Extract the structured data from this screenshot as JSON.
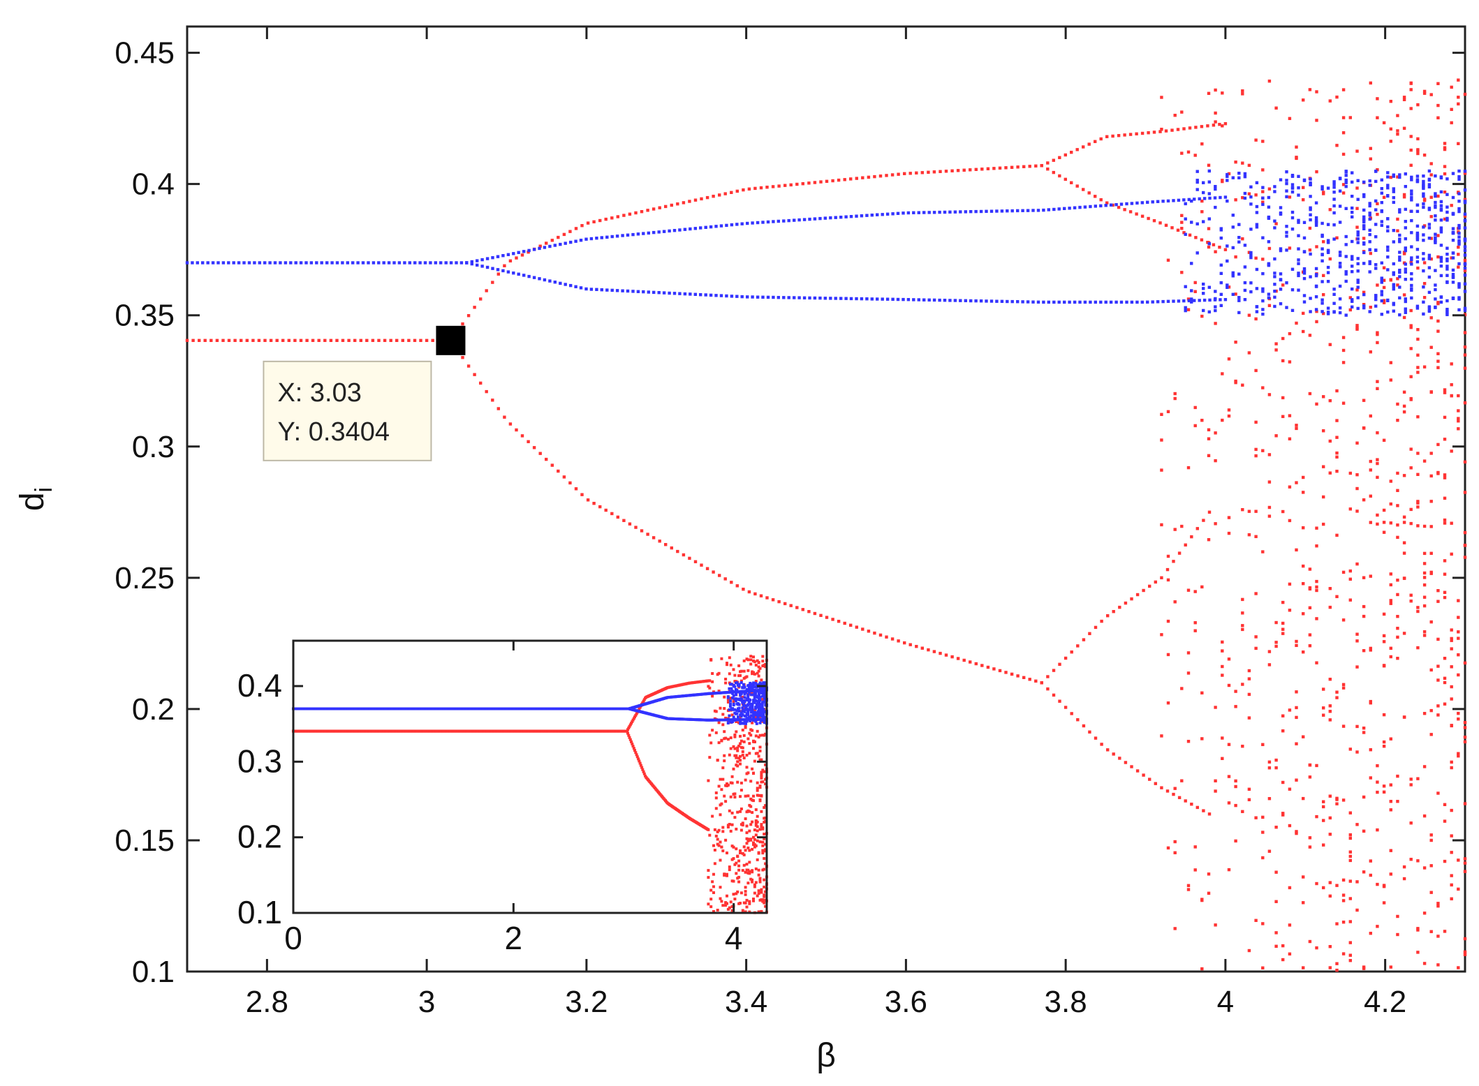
{
  "chart_data": [
    {
      "type": "scatter",
      "title": "",
      "xlabel": "β",
      "ylabel": "d",
      "ylabel_subscript": "i",
      "xlim": [
        2.7,
        4.3
      ],
      "ylim": [
        0.1,
        0.46
      ],
      "x_ticks": [
        "2.8",
        "3",
        "3.2",
        "3.4",
        "3.6",
        "3.8",
        "4",
        "4.2"
      ],
      "y_ticks": [
        "0.1",
        "0.15",
        "0.2",
        "0.25",
        "0.3",
        "0.35",
        "0.4",
        "0.45"
      ],
      "grid": false,
      "series_colors": [
        "#ff3333",
        "#3333ff"
      ],
      "series": [
        {
          "color": "#ff3333",
          "branches": [
            {
              "x": [
                2.7,
                3.03
              ],
              "y": [
                0.3404,
                0.3404
              ]
            },
            {
              "x": [
                3.03,
                3.1,
                3.2,
                3.4,
                3.6,
                3.77
              ],
              "y": [
                0.3404,
                0.37,
                0.385,
                0.398,
                0.404,
                0.407
              ]
            },
            {
              "x": [
                3.03,
                3.1,
                3.2,
                3.4,
                3.6,
                3.77
              ],
              "y": [
                0.3404,
                0.31,
                0.28,
                0.245,
                0.225,
                0.21
              ]
            },
            {
              "x": [
                3.77,
                3.85,
                3.92,
                4.0
              ],
              "y": [
                0.407,
                0.418,
                0.42,
                0.423
              ]
            },
            {
              "x": [
                3.77,
                3.85,
                3.92,
                4.0
              ],
              "y": [
                0.407,
                0.393,
                0.385,
                0.375
              ]
            },
            {
              "x": [
                3.77,
                3.85,
                3.92,
                3.98
              ],
              "y": [
                0.21,
                0.235,
                0.25,
                0.275
              ]
            },
            {
              "x": [
                3.77,
                3.85,
                3.92,
                3.98
              ],
              "y": [
                0.21,
                0.185,
                0.17,
                0.16
              ]
            }
          ],
          "chaos_region": {
            "x_start": 3.92,
            "x_end": 4.3,
            "y_min": 0.1,
            "y_max": 0.44
          }
        },
        {
          "color": "#3333ff",
          "branches": [
            {
              "x": [
                2.7,
                3.05
              ],
              "y": [
                0.37,
                0.37
              ]
            },
            {
              "x": [
                3.05,
                3.2,
                3.4,
                3.6,
                3.77,
                3.9,
                4.0
              ],
              "y": [
                0.37,
                0.379,
                0.385,
                0.389,
                0.39,
                0.393,
                0.395
              ]
            },
            {
              "x": [
                3.05,
                3.2,
                3.4,
                3.6,
                3.77,
                3.9,
                4.0
              ],
              "y": [
                0.37,
                0.36,
                0.357,
                0.356,
                0.355,
                0.355,
                0.356
              ]
            }
          ],
          "chaos_region": {
            "x_start": 3.95,
            "x_end": 4.3,
            "y_min": 0.35,
            "y_max": 0.405
          }
        }
      ],
      "annotation": {
        "x": 3.03,
        "y": 0.3404,
        "label_x": "X: 3.03",
        "label_y": "Y: 0.3404"
      }
    },
    {
      "type": "scatter",
      "title": "",
      "xlabel": "",
      "ylabel": "",
      "xlim": [
        0,
        4.3
      ],
      "ylim": [
        0.1,
        0.46
      ],
      "x_ticks": [
        "0",
        "2",
        "4"
      ],
      "y_ticks": [
        "0.1",
        "0.2",
        "0.3",
        "0.4"
      ],
      "grid": false,
      "series": [
        {
          "color": "#ff3333",
          "branches": [
            {
              "x": [
                0,
                3.03
              ],
              "y": [
                0.3404,
                0.3404
              ]
            },
            {
              "x": [
                3.03,
                3.2,
                3.4,
                3.6,
                3.77
              ],
              "y": [
                0.3404,
                0.385,
                0.398,
                0.404,
                0.407
              ]
            },
            {
              "x": [
                3.03,
                3.2,
                3.4,
                3.6,
                3.77
              ],
              "y": [
                0.3404,
                0.28,
                0.245,
                0.225,
                0.21
              ]
            }
          ],
          "chaos_region": {
            "x_start": 3.77,
            "x_end": 4.3,
            "y_min": 0.1,
            "y_max": 0.44
          }
        },
        {
          "color": "#3333ff",
          "branches": [
            {
              "x": [
                0,
                3.05
              ],
              "y": [
                0.37,
                0.37
              ]
            },
            {
              "x": [
                3.05,
                3.4,
                3.77,
                4.3
              ],
              "y": [
                0.37,
                0.385,
                0.39,
                0.395
              ]
            },
            {
              "x": [
                3.05,
                3.4,
                3.77,
                4.3
              ],
              "y": [
                0.37,
                0.357,
                0.355,
                0.356
              ]
            }
          ],
          "chaos_region": {
            "x_start": 3.95,
            "x_end": 4.3,
            "y_min": 0.35,
            "y_max": 0.405
          }
        }
      ]
    }
  ]
}
